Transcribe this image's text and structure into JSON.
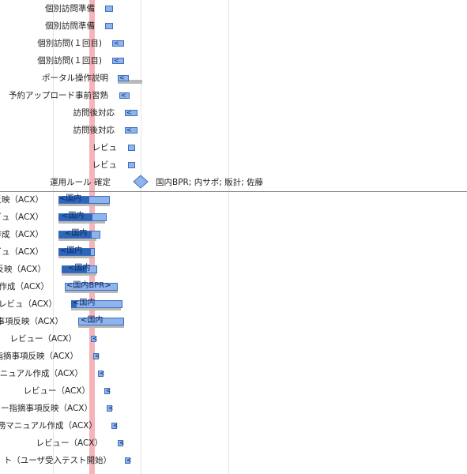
{
  "colors": {
    "bar_fill": "#8fb4ec",
    "bar_border": "#3e6fbf",
    "progress": "#2f66b8",
    "baseline": "#b8b8b8",
    "today_line": "#f4b4b8",
    "milestone": "#8fb4ec"
  },
  "tasks": [
    {
      "name": "個別訪問準備",
      "bar_text": "",
      "marker": "",
      "progress": 0
    },
    {
      "name": "個別訪問準備",
      "bar_text": "",
      "marker": "",
      "progress": 0
    },
    {
      "name": "個別訪問(１回目)",
      "bar_text": "",
      "marker": "<",
      "progress": 0
    },
    {
      "name": "個別訪問(１回目)",
      "bar_text": "",
      "marker": "<",
      "progress": 0
    },
    {
      "name": "ポータル操作説明",
      "bar_text": "",
      "marker": "<",
      "progress": 0
    },
    {
      "name": "予約アップロード事前習熟",
      "bar_text": "",
      "marker": "<",
      "progress": 0
    },
    {
      "name": "訪問後対応",
      "bar_text": "",
      "marker": "<",
      "progress": 0
    },
    {
      "name": "訪問後対応",
      "bar_text": "",
      "marker": "<",
      "progress": 0
    },
    {
      "name": "レビュ",
      "bar_text": "",
      "marker": "",
      "progress": 0
    },
    {
      "name": "レビュ",
      "bar_text": "",
      "marker": "",
      "progress": 0
    },
    {
      "name": "運用ルール 確定",
      "bar_text": "国内BPR; 内サポ; 販計; 佐藤",
      "marker": "",
      "progress": 0
    },
    {
      "name": "反映（ACX）",
      "bar_text": "<国内",
      "marker": "",
      "progress": 0.6
    },
    {
      "name": "ビュ（ACX）",
      "bar_text": "<国内",
      "marker": "",
      "progress": 0.7
    },
    {
      "name": "作成（ACX）",
      "bar_text": "<国内",
      "marker": "",
      "progress": 0.8
    },
    {
      "name": "ビュ（ACX）",
      "bar_text": "<国内",
      "marker": "",
      "progress": 0.9
    },
    {
      "name": "反映（ACX）",
      "bar_text": "<国内",
      "marker": "",
      "progress": 0.7
    },
    {
      "name": "ス作成（ACX）",
      "bar_text": "<国内BPR>",
      "marker": "",
      "progress": 0
    },
    {
      "name": "ムレビュ（ACX）",
      "bar_text": "<国内",
      "marker": "",
      "progress": 0.1
    },
    {
      "name": "事項反映（ACX）",
      "bar_text": "<国内",
      "marker": "",
      "progress": 0
    },
    {
      "name": "レビュー（ACX）",
      "bar_text": "",
      "marker": "<",
      "progress": 0
    },
    {
      "name": "指摘事項反映（ACX）",
      "bar_text": "",
      "marker": "<",
      "progress": 0
    },
    {
      "name": "ニュアル作成（ACX）",
      "bar_text": "",
      "marker": "<",
      "progress": 0
    },
    {
      "name": "レビュー（ACX）",
      "bar_text": "",
      "marker": "<",
      "progress": 0
    },
    {
      "name": "ー指摘事項反映（ACX）",
      "bar_text": "",
      "marker": "<",
      "progress": 0
    },
    {
      "name": "務マニュアル作成（ACX）",
      "bar_text": "",
      "marker": "<",
      "progress": 0
    },
    {
      "name": "レビュー（ACX）",
      "bar_text": "",
      "marker": "<",
      "progress": 0
    },
    {
      "name": "ト（ユーザ受入テスト開始）",
      "bar_text": "",
      "marker": "<",
      "progress": 0
    }
  ]
}
